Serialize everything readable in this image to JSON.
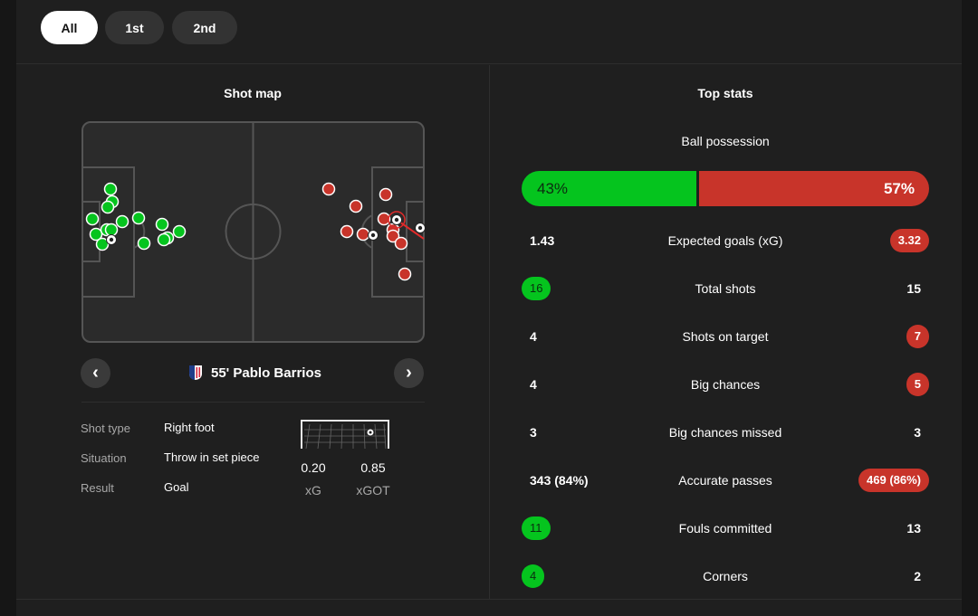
{
  "periods": [
    {
      "label": "All",
      "active": true
    },
    {
      "label": "1st",
      "active": false
    },
    {
      "label": "2nd",
      "active": false
    }
  ],
  "colors": {
    "home": "#05c41e",
    "away": "#c8342a",
    "background": "#1f1f1f",
    "pitch": "#2b2b2b"
  },
  "shot_map": {
    "title": "Shot map",
    "selected_shot": {
      "minute_player": "55' Pablo Barrios",
      "crest": "atletico-madrid-crest",
      "details": [
        {
          "label": "Shot type",
          "value": "Right foot"
        },
        {
          "label": "Situation",
          "value": "Throw in set piece"
        },
        {
          "label": "Result",
          "value": "Goal"
        }
      ],
      "xg": "0.20",
      "xg_label": "xG",
      "xgot": "0.85",
      "xgot_label": "xGOT"
    },
    "prev_icon": "chevron-left-icon",
    "next_icon": "chevron-right-icon"
  },
  "top_stats": {
    "title": "Top stats",
    "possession": {
      "label": "Ball possession",
      "home": "43%",
      "away": "57%",
      "home_pct": 43
    },
    "rows": [
      {
        "label": "Expected goals (xG)",
        "home": "1.43",
        "away": "3.32",
        "highlight": "away"
      },
      {
        "label": "Total shots",
        "home": "16",
        "away": "15",
        "highlight": "home"
      },
      {
        "label": "Shots on target",
        "home": "4",
        "away": "7",
        "highlight": "away"
      },
      {
        "label": "Big chances",
        "home": "4",
        "away": "5",
        "highlight": "away"
      },
      {
        "label": "Big chances missed",
        "home": "3",
        "away": "3",
        "highlight": "none"
      },
      {
        "label": "Accurate passes",
        "home": "343 (84%)",
        "away": "469 (86%)",
        "highlight": "away"
      },
      {
        "label": "Fouls committed",
        "home": "11",
        "away": "13",
        "highlight": "home"
      },
      {
        "label": "Corners",
        "home": "4",
        "away": "2",
        "highlight": "home"
      }
    ]
  }
}
